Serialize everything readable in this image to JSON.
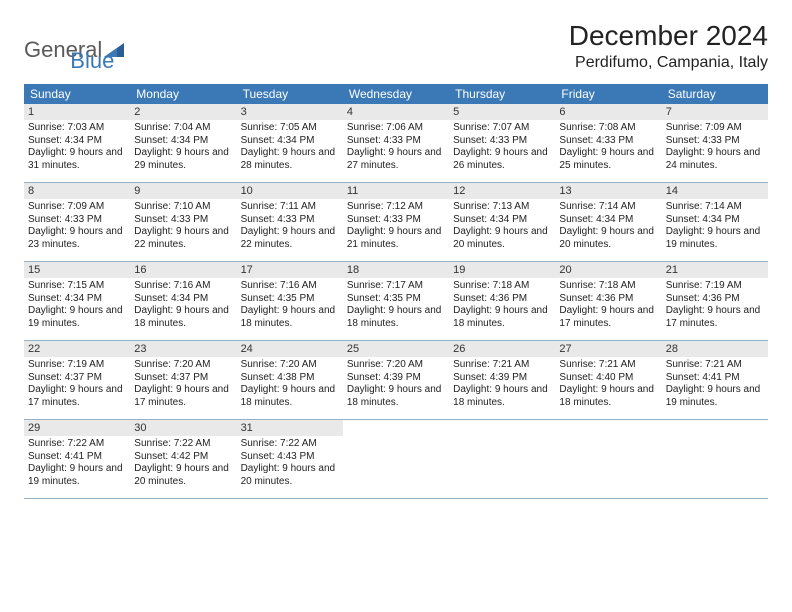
{
  "logo": {
    "word1": "General",
    "word2": "Blue"
  },
  "title": "December 2024",
  "location": "Perdifumo, Campania, Italy",
  "colors": {
    "header_bg": "#3a78b6",
    "daynum_bg": "#e9e9e9",
    "row_border": "#98b0c4",
    "logo_gray": "#5a5a5a",
    "logo_blue": "#3a78b6",
    "text": "#222222",
    "bg": "#ffffff"
  },
  "weekdays": [
    "Sunday",
    "Monday",
    "Tuesday",
    "Wednesday",
    "Thursday",
    "Friday",
    "Saturday"
  ],
  "days": [
    {
      "n": 1,
      "sunrise": "7:03 AM",
      "sunset": "4:34 PM",
      "dl": "9 hours and 31 minutes."
    },
    {
      "n": 2,
      "sunrise": "7:04 AM",
      "sunset": "4:34 PM",
      "dl": "9 hours and 29 minutes."
    },
    {
      "n": 3,
      "sunrise": "7:05 AM",
      "sunset": "4:34 PM",
      "dl": "9 hours and 28 minutes."
    },
    {
      "n": 4,
      "sunrise": "7:06 AM",
      "sunset": "4:33 PM",
      "dl": "9 hours and 27 minutes."
    },
    {
      "n": 5,
      "sunrise": "7:07 AM",
      "sunset": "4:33 PM",
      "dl": "9 hours and 26 minutes."
    },
    {
      "n": 6,
      "sunrise": "7:08 AM",
      "sunset": "4:33 PM",
      "dl": "9 hours and 25 minutes."
    },
    {
      "n": 7,
      "sunrise": "7:09 AM",
      "sunset": "4:33 PM",
      "dl": "9 hours and 24 minutes."
    },
    {
      "n": 8,
      "sunrise": "7:09 AM",
      "sunset": "4:33 PM",
      "dl": "9 hours and 23 minutes."
    },
    {
      "n": 9,
      "sunrise": "7:10 AM",
      "sunset": "4:33 PM",
      "dl": "9 hours and 22 minutes."
    },
    {
      "n": 10,
      "sunrise": "7:11 AM",
      "sunset": "4:33 PM",
      "dl": "9 hours and 22 minutes."
    },
    {
      "n": 11,
      "sunrise": "7:12 AM",
      "sunset": "4:33 PM",
      "dl": "9 hours and 21 minutes."
    },
    {
      "n": 12,
      "sunrise": "7:13 AM",
      "sunset": "4:34 PM",
      "dl": "9 hours and 20 minutes."
    },
    {
      "n": 13,
      "sunrise": "7:14 AM",
      "sunset": "4:34 PM",
      "dl": "9 hours and 20 minutes."
    },
    {
      "n": 14,
      "sunrise": "7:14 AM",
      "sunset": "4:34 PM",
      "dl": "9 hours and 19 minutes."
    },
    {
      "n": 15,
      "sunrise": "7:15 AM",
      "sunset": "4:34 PM",
      "dl": "9 hours and 19 minutes."
    },
    {
      "n": 16,
      "sunrise": "7:16 AM",
      "sunset": "4:34 PM",
      "dl": "9 hours and 18 minutes."
    },
    {
      "n": 17,
      "sunrise": "7:16 AM",
      "sunset": "4:35 PM",
      "dl": "9 hours and 18 minutes."
    },
    {
      "n": 18,
      "sunrise": "7:17 AM",
      "sunset": "4:35 PM",
      "dl": "9 hours and 18 minutes."
    },
    {
      "n": 19,
      "sunrise": "7:18 AM",
      "sunset": "4:36 PM",
      "dl": "9 hours and 18 minutes."
    },
    {
      "n": 20,
      "sunrise": "7:18 AM",
      "sunset": "4:36 PM",
      "dl": "9 hours and 17 minutes."
    },
    {
      "n": 21,
      "sunrise": "7:19 AM",
      "sunset": "4:36 PM",
      "dl": "9 hours and 17 minutes."
    },
    {
      "n": 22,
      "sunrise": "7:19 AM",
      "sunset": "4:37 PM",
      "dl": "9 hours and 17 minutes."
    },
    {
      "n": 23,
      "sunrise": "7:20 AM",
      "sunset": "4:37 PM",
      "dl": "9 hours and 17 minutes."
    },
    {
      "n": 24,
      "sunrise": "7:20 AM",
      "sunset": "4:38 PM",
      "dl": "9 hours and 18 minutes."
    },
    {
      "n": 25,
      "sunrise": "7:20 AM",
      "sunset": "4:39 PM",
      "dl": "9 hours and 18 minutes."
    },
    {
      "n": 26,
      "sunrise": "7:21 AM",
      "sunset": "4:39 PM",
      "dl": "9 hours and 18 minutes."
    },
    {
      "n": 27,
      "sunrise": "7:21 AM",
      "sunset": "4:40 PM",
      "dl": "9 hours and 18 minutes."
    },
    {
      "n": 28,
      "sunrise": "7:21 AM",
      "sunset": "4:41 PM",
      "dl": "9 hours and 19 minutes."
    },
    {
      "n": 29,
      "sunrise": "7:22 AM",
      "sunset": "4:41 PM",
      "dl": "9 hours and 19 minutes."
    },
    {
      "n": 30,
      "sunrise": "7:22 AM",
      "sunset": "4:42 PM",
      "dl": "9 hours and 20 minutes."
    },
    {
      "n": 31,
      "sunrise": "7:22 AM",
      "sunset": "4:43 PM",
      "dl": "9 hours and 20 minutes."
    }
  ],
  "labels": {
    "sunrise": "Sunrise:",
    "sunset": "Sunset:",
    "daylight": "Daylight:"
  },
  "layout": {
    "first_weekday_index": 0,
    "cols": 7
  }
}
